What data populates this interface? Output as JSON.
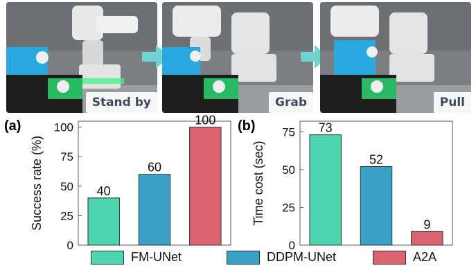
{
  "photos": [
    {
      "caption": "Stand by"
    },
    {
      "caption": "Grab"
    },
    {
      "caption": "Pull"
    }
  ],
  "panels": {
    "a": "(a)",
    "b": "(b)"
  },
  "chart_data": [
    {
      "type": "bar",
      "categories": [
        "FM-UNet",
        "DDPM-UNet",
        "A2A"
      ],
      "values": [
        40,
        60,
        100
      ],
      "data_labels": [
        "40",
        "60",
        "100"
      ],
      "title": "",
      "xlabel": "",
      "ylabel": "Success rate (%)",
      "ylim": [
        0,
        105
      ],
      "yticks": [
        "0",
        "25",
        "50",
        "75",
        "100"
      ],
      "grid": false
    },
    {
      "type": "bar",
      "categories": [
        "FM-UNet",
        "DDPM-UNet",
        "A2A"
      ],
      "values": [
        73,
        52,
        9
      ],
      "data_labels": [
        "73",
        "52",
        "9"
      ],
      "title": "",
      "xlabel": "",
      "ylabel": "Time cost (sec)",
      "ylim": [
        0,
        82
      ],
      "yticks": [
        "0",
        "25",
        "50",
        "75"
      ],
      "grid": false
    }
  ],
  "legend": [
    {
      "label": "FM-UNet",
      "color": "#4fd6b0"
    },
    {
      "label": "DDPM-UNet",
      "color": "#3aa2c6"
    },
    {
      "label": "A2A",
      "color": "#d9646f"
    }
  ],
  "colors": {
    "bar_edge": "#333333",
    "arrow": "#6fd3d1"
  }
}
